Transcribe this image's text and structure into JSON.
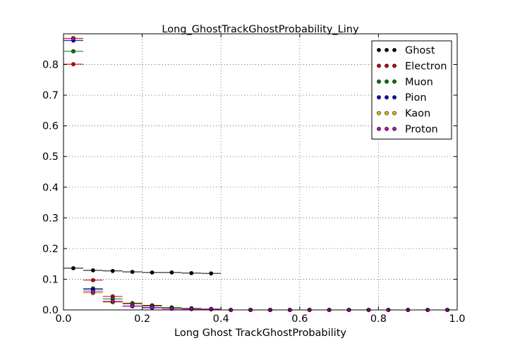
{
  "chart_data": {
    "type": "scatter",
    "title": "Long_GhostTrackGhostProbability_Liny",
    "xlabel": "Long Ghost TrackGhostProbability",
    "ylabel": "",
    "xlim": [
      0.0,
      1.0
    ],
    "ylim": [
      0.0,
      0.9
    ],
    "xticks": [
      "0.0",
      "0.2",
      "0.4",
      "0.6",
      "0.8",
      "1.0"
    ],
    "yticks": [
      "0.0",
      "0.1",
      "0.2",
      "0.3",
      "0.4",
      "0.5",
      "0.6",
      "0.7",
      "0.8"
    ],
    "grid": true,
    "legend_position": "top-right",
    "bin_width": 0.05,
    "x": [
      0.025,
      0.075,
      0.125,
      0.175,
      0.225,
      0.275,
      0.325,
      0.375,
      0.425,
      0.475,
      0.525,
      0.575,
      0.625,
      0.675,
      0.725,
      0.775,
      0.825,
      0.875,
      0.925,
      0.975
    ],
    "series": [
      {
        "name": "Ghost",
        "color": "#000000",
        "values": [
          0.136,
          0.129,
          0.127,
          0.124,
          0.122,
          0.122,
          0.12,
          0.119,
          0,
          0,
          0,
          0,
          0,
          0,
          0,
          0,
          0,
          0,
          0,
          0
        ]
      },
      {
        "name": "Electron",
        "color": "#cc0000",
        "values": [
          0.801,
          0.097,
          0.044,
          0.022,
          0.015,
          0.008,
          0.005,
          0.003,
          0,
          0,
          0,
          0,
          0,
          0,
          0,
          0,
          0,
          0,
          0,
          0
        ]
      },
      {
        "name": "Muon",
        "color": "#007700",
        "values": [
          0.843,
          0.07,
          0.036,
          0.02,
          0.013,
          0.008,
          0.005,
          0.003,
          0,
          0,
          0,
          0,
          0,
          0,
          0,
          0,
          0,
          0,
          0,
          0
        ]
      },
      {
        "name": "Pion",
        "color": "#0000cc",
        "values": [
          0.878,
          0.066,
          0.026,
          0.012,
          0.007,
          0.004,
          0.003,
          0.002,
          0,
          0,
          0,
          0,
          0,
          0,
          0,
          0,
          0,
          0,
          0,
          0
        ]
      },
      {
        "name": "Kaon",
        "color": "#ddbb00",
        "values": [
          0.886,
          0.055,
          0.025,
          0.013,
          0.008,
          0.005,
          0.003,
          0.002,
          0,
          0,
          0,
          0,
          0,
          0,
          0,
          0,
          0,
          0,
          0,
          0
        ]
      },
      {
        "name": "Proton",
        "color": "#bb00bb",
        "values": [
          0.884,
          0.059,
          0.028,
          0.013,
          0.008,
          0.004,
          0.003,
          0.002,
          0,
          0,
          0,
          0,
          0,
          0,
          0,
          0,
          0,
          0,
          0,
          0
        ]
      }
    ]
  }
}
